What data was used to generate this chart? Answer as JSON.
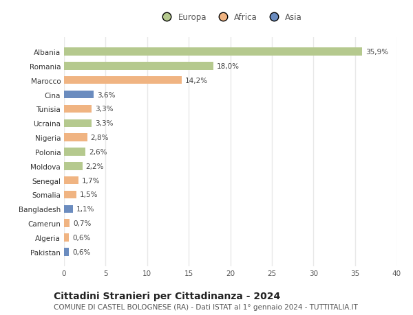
{
  "countries": [
    "Albania",
    "Romania",
    "Marocco",
    "Cina",
    "Tunisia",
    "Ucraina",
    "Nigeria",
    "Polonia",
    "Moldova",
    "Senegal",
    "Somalia",
    "Bangladesh",
    "Camerun",
    "Algeria",
    "Pakistan"
  ],
  "values": [
    35.9,
    18.0,
    14.2,
    3.6,
    3.3,
    3.3,
    2.8,
    2.6,
    2.2,
    1.7,
    1.5,
    1.1,
    0.7,
    0.6,
    0.6
  ],
  "labels": [
    "35,9%",
    "18,0%",
    "14,2%",
    "3,6%",
    "3,3%",
    "3,3%",
    "2,8%",
    "2,6%",
    "2,2%",
    "1,7%",
    "1,5%",
    "1,1%",
    "0,7%",
    "0,6%",
    "0,6%"
  ],
  "continents": [
    "Europa",
    "Europa",
    "Africa",
    "Asia",
    "Africa",
    "Europa",
    "Africa",
    "Europa",
    "Europa",
    "Africa",
    "Africa",
    "Asia",
    "Africa",
    "Africa",
    "Asia"
  ],
  "colors": {
    "Europa": "#b5c98e",
    "Africa": "#f0b482",
    "Asia": "#6b8cbf"
  },
  "xlim": [
    0,
    40
  ],
  "xticks": [
    0,
    5,
    10,
    15,
    20,
    25,
    30,
    35,
    40
  ],
  "title": "Cittadini Stranieri per Cittadinanza - 2024",
  "subtitle": "COMUNE DI CASTEL BOLOGNESE (RA) - Dati ISTAT al 1° gennaio 2024 - TUTTITALIA.IT",
  "background_color": "#ffffff",
  "grid_color": "#e8e8e8",
  "bar_height": 0.55,
  "title_fontsize": 10,
  "subtitle_fontsize": 7.5,
  "label_fontsize": 7.5,
  "tick_fontsize": 7.5,
  "legend_fontsize": 8.5
}
